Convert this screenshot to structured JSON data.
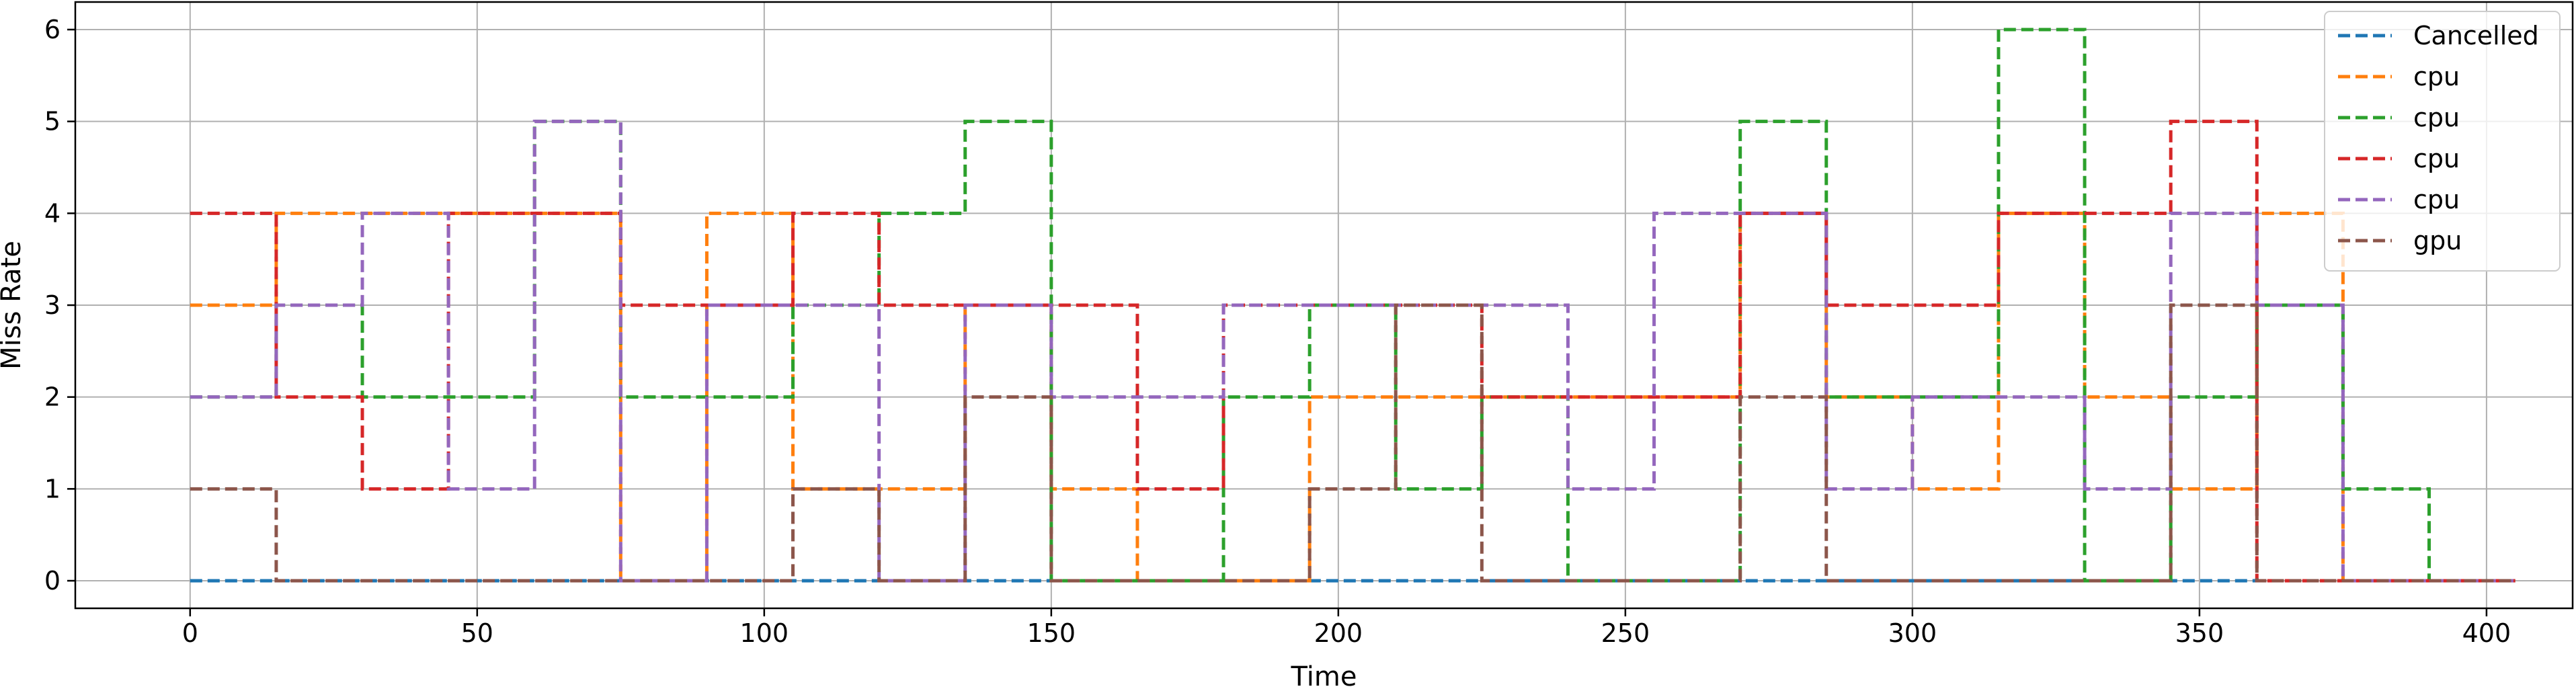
{
  "chart_data": {
    "type": "line",
    "step": "post",
    "title": "",
    "xlabel": "Time",
    "ylabel": "Miss Rate",
    "xlim": [
      -20,
      415
    ],
    "ylim": [
      -0.3,
      6.3
    ],
    "xticks": [
      0,
      50,
      100,
      150,
      200,
      250,
      300,
      350,
      400
    ],
    "yticks": [
      0,
      1,
      2,
      3,
      4,
      5,
      6
    ],
    "grid": true,
    "legend_position": "top-right",
    "line_style": "dashed",
    "x": [
      0,
      15,
      30,
      45,
      60,
      75,
      90,
      105,
      120,
      135,
      150,
      165,
      180,
      195,
      210,
      225,
      240,
      255,
      270,
      285,
      300,
      315,
      330,
      345,
      360,
      375,
      390,
      405
    ],
    "series": [
      {
        "name": "Cancelled",
        "color": "#1f77b4",
        "values": [
          0,
          0,
          0,
          0,
          0,
          0,
          0,
          0,
          0,
          0,
          0,
          0,
          0,
          0,
          0,
          0,
          0,
          0,
          0,
          0,
          0,
          0,
          0,
          0,
          0,
          0,
          0,
          0
        ]
      },
      {
        "name": "cpu",
        "color": "#ff7f0e",
        "values": [
          3,
          4,
          4,
          4,
          4,
          0,
          4,
          1,
          1,
          3,
          1,
          0,
          0,
          2,
          2,
          2,
          2,
          2,
          4,
          2,
          1,
          4,
          2,
          1,
          4,
          0,
          0,
          0
        ]
      },
      {
        "name": "cpu",
        "color": "#2ca02c",
        "values": [
          2,
          3,
          2,
          2,
          5,
          2,
          2,
          3,
          4,
          5,
          0,
          0,
          2,
          3,
          1,
          2,
          0,
          0,
          5,
          2,
          2,
          6,
          0,
          2,
          3,
          1,
          0,
          0
        ]
      },
      {
        "name": "cpu",
        "color": "#d62728",
        "values": [
          4,
          2,
          1,
          4,
          4,
          3,
          3,
          4,
          3,
          3,
          3,
          1,
          3,
          3,
          3,
          2,
          2,
          2,
          4,
          3,
          3,
          4,
          4,
          5,
          0,
          0,
          0,
          0
        ]
      },
      {
        "name": "cpu",
        "color": "#9467bd",
        "values": [
          2,
          3,
          4,
          1,
          5,
          0,
          3,
          3,
          0,
          3,
          2,
          2,
          3,
          3,
          3,
          3,
          1,
          4,
          4,
          1,
          2,
          2,
          1,
          4,
          3,
          0,
          0,
          0
        ]
      },
      {
        "name": "gpu",
        "color": "#8c564b",
        "values": [
          1,
          0,
          0,
          0,
          0,
          0,
          0,
          1,
          0,
          2,
          0,
          0,
          0,
          1,
          3,
          0,
          0,
          0,
          2,
          0,
          0,
          0,
          0,
          3,
          0,
          0,
          0,
          0
        ]
      }
    ]
  }
}
